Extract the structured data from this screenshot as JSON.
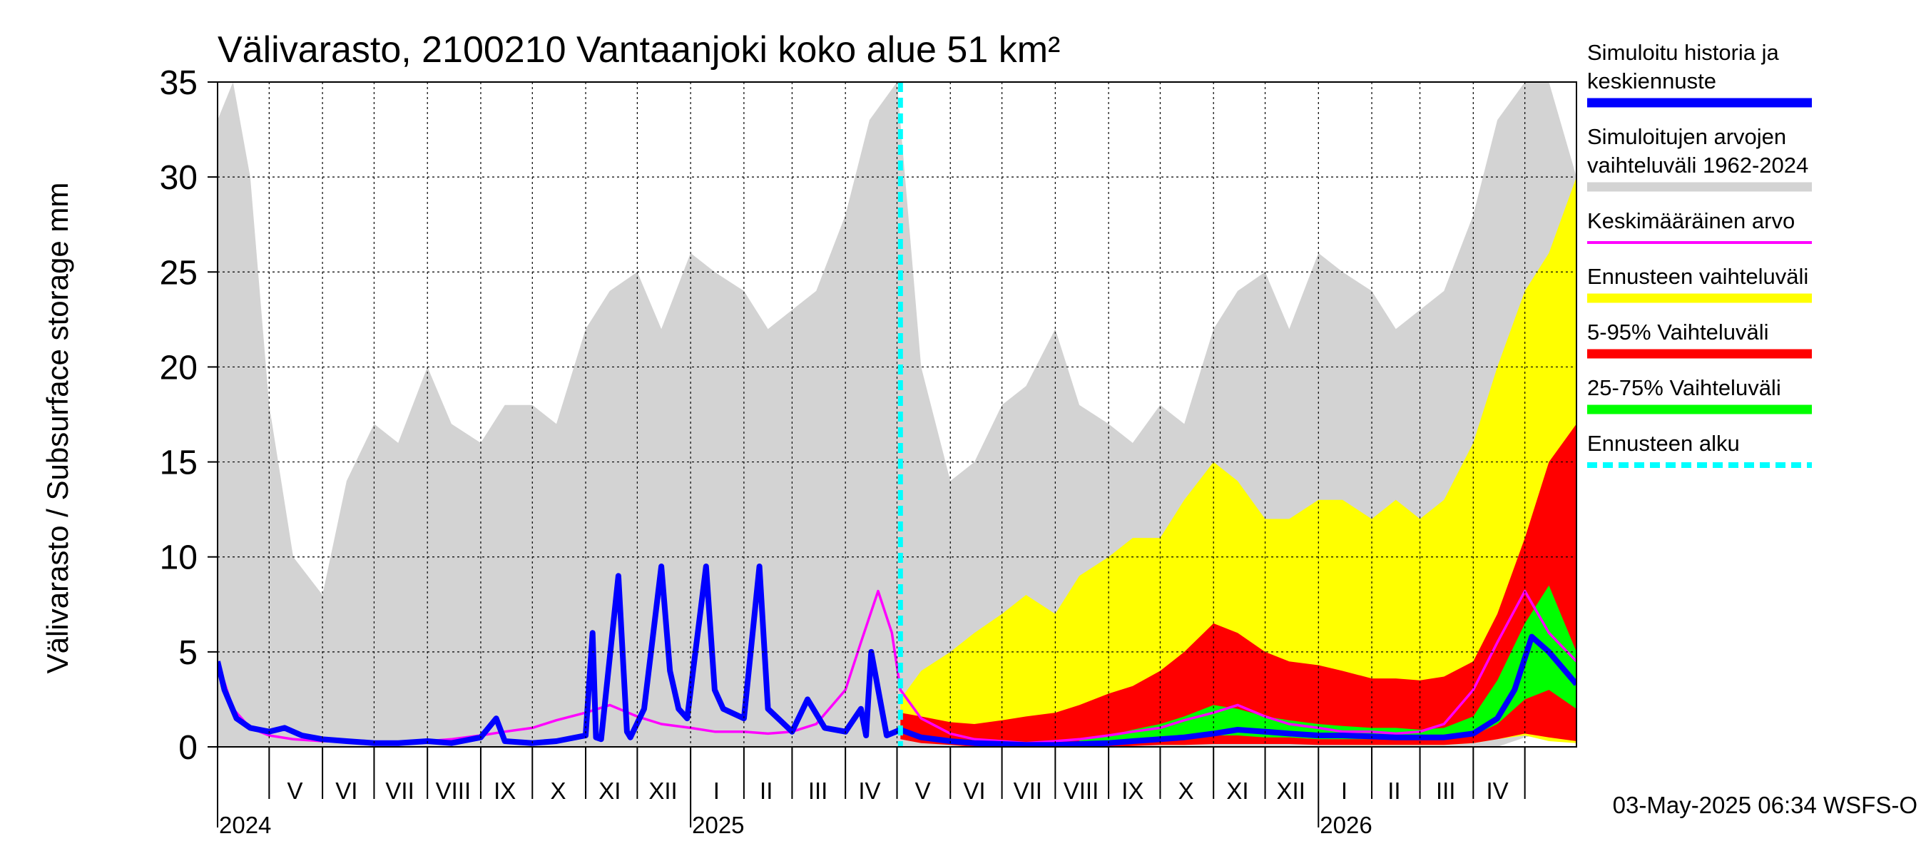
{
  "chart_data": {
    "type": "area",
    "title": "Välivarasto, 2100210 Vantaanjoki koko alue 51 km²",
    "ylabel": "Välivarasto / Subsurface storage  mm",
    "ylim": [
      0,
      35
    ],
    "y_ticks": [
      0,
      5,
      10,
      15,
      20,
      25,
      30,
      35
    ],
    "grid": true,
    "legend_position": "right",
    "x_range": [
      "2024-04-01",
      "2026-05-31"
    ],
    "forecast_start": "2025-05-03",
    "month_labels": [
      {
        "label": "V",
        "date": "2024-05-16"
      },
      {
        "label": "VI",
        "date": "2024-06-15"
      },
      {
        "label": "VII",
        "date": "2024-07-16"
      },
      {
        "label": "VIII",
        "date": "2024-08-16"
      },
      {
        "label": "IX",
        "date": "2024-09-15"
      },
      {
        "label": "X",
        "date": "2024-10-16"
      },
      {
        "label": "XI",
        "date": "2024-11-15"
      },
      {
        "label": "XII",
        "date": "2024-12-16"
      },
      {
        "label": "I",
        "date": "2025-01-16"
      },
      {
        "label": "II",
        "date": "2025-02-14"
      },
      {
        "label": "III",
        "date": "2025-03-16"
      },
      {
        "label": "IV",
        "date": "2025-04-15"
      },
      {
        "label": "V",
        "date": "2025-05-16"
      },
      {
        "label": "VI",
        "date": "2025-06-15"
      },
      {
        "label": "VII",
        "date": "2025-07-16"
      },
      {
        "label": "VIII",
        "date": "2025-08-16"
      },
      {
        "label": "IX",
        "date": "2025-09-15"
      },
      {
        "label": "X",
        "date": "2025-10-16"
      },
      {
        "label": "XI",
        "date": "2025-11-15"
      },
      {
        "label": "XII",
        "date": "2025-12-16"
      },
      {
        "label": "I",
        "date": "2026-01-16"
      },
      {
        "label": "II",
        "date": "2026-02-14"
      },
      {
        "label": "III",
        "date": "2026-03-16"
      },
      {
        "label": "IV",
        "date": "2026-04-15"
      }
    ],
    "year_labels": [
      {
        "label": "2024",
        "date": "2024-05-01"
      },
      {
        "label": "2025",
        "date": "2025-01-01"
      },
      {
        "label": "2026",
        "date": "2026-01-01"
      }
    ],
    "footer": "03-May-2025 06:34 WSFS-O",
    "legend": [
      {
        "label": "Simuloitu historia ja keskiennuste",
        "color": "#0000ff",
        "style": "thick"
      },
      {
        "label": "Simuloitujen arvojen vaihteluväli 1962-2024",
        "color": "#d3d3d3",
        "style": "thick"
      },
      {
        "label": "Keskimääräinen arvo",
        "color": "#ff00ff",
        "style": "thin"
      },
      {
        "label": "Ennusteen vaihteluväli",
        "color": "#ffff00",
        "style": "thick"
      },
      {
        "label": "5-95% Vaihteluväli",
        "color": "#ff0000",
        "style": "thick"
      },
      {
        "label": "25-75% Vaihteluväli",
        "color": "#00ff00",
        "style": "thick"
      },
      {
        "label": "Ennusteen alku",
        "color": "#00ffff",
        "style": "dashed"
      }
    ],
    "series": [
      {
        "name": "Simuloitujen arvojen vaihteluväli 1962-2024",
        "kind": "band",
        "color": "#d3d3d3",
        "x": [
          "2024-04-01",
          "2024-04-10",
          "2024-04-20",
          "2024-05-01",
          "2024-05-15",
          "2024-06-01",
          "2024-06-15",
          "2024-07-01",
          "2024-07-15",
          "2024-08-01",
          "2024-08-15",
          "2024-09-01",
          "2024-09-15",
          "2024-10-01",
          "2024-10-15",
          "2024-11-01",
          "2024-11-15",
          "2024-12-01",
          "2024-12-15",
          "2025-01-01",
          "2025-01-15",
          "2025-02-01",
          "2025-02-15",
          "2025-03-01",
          "2025-03-15",
          "2025-04-01",
          "2025-04-15",
          "2025-05-01",
          "2025-05-15",
          "2025-06-01",
          "2025-06-15",
          "2025-07-01",
          "2025-07-15",
          "2025-08-01",
          "2025-08-15",
          "2025-09-01",
          "2025-09-15",
          "2025-10-01",
          "2025-10-15",
          "2025-11-01",
          "2025-11-15",
          "2025-12-01",
          "2025-12-15",
          "2026-01-01",
          "2026-01-15",
          "2026-02-01",
          "2026-02-15",
          "2026-03-01",
          "2026-03-15",
          "2026-04-01",
          "2026-04-15",
          "2026-05-01",
          "2026-05-15",
          "2026-05-31"
        ],
        "upper": [
          33,
          35,
          30,
          18,
          10,
          8,
          14,
          17,
          16,
          20,
          17,
          16,
          18,
          18,
          17,
          22,
          24,
          25,
          22,
          26,
          25,
          24,
          22,
          23,
          24,
          28,
          33,
          35,
          20,
          14,
          15,
          18,
          19,
          22,
          18,
          17,
          16,
          18,
          17,
          22,
          24,
          25,
          22,
          26,
          25,
          24,
          22,
          23,
          24,
          28,
          33,
          35,
          35,
          30
        ],
        "lower": [
          0,
          0,
          0,
          0,
          0,
          0,
          0,
          0,
          0,
          0,
          0,
          0,
          0,
          0,
          0,
          0,
          0,
          0,
          0,
          0,
          0,
          0,
          0,
          0,
          0,
          0,
          0,
          0,
          0,
          0,
          0,
          0,
          0,
          0,
          0,
          0,
          0,
          0,
          0,
          0,
          0,
          0,
          0,
          0,
          0,
          0,
          0,
          0,
          0,
          0,
          0,
          0.5,
          0.8,
          0.3
        ]
      },
      {
        "name": "Ennusteen vaihteluväli",
        "kind": "band",
        "color": "#ffff00",
        "x": [
          "2025-05-03",
          "2025-05-15",
          "2025-06-01",
          "2025-06-15",
          "2025-07-01",
          "2025-07-15",
          "2025-08-01",
          "2025-08-15",
          "2025-09-01",
          "2025-09-15",
          "2025-10-01",
          "2025-10-15",
          "2025-11-01",
          "2025-11-15",
          "2025-12-01",
          "2025-12-15",
          "2026-01-01",
          "2026-01-15",
          "2026-02-01",
          "2026-02-15",
          "2026-03-01",
          "2026-03-15",
          "2026-04-01",
          "2026-04-15",
          "2026-05-01",
          "2026-05-15",
          "2026-05-31"
        ],
        "upper": [
          2.5,
          4,
          5,
          6,
          7,
          8,
          7,
          9,
          10,
          11,
          11,
          13,
          15,
          14,
          12,
          12,
          13,
          13,
          12,
          13,
          12,
          13,
          16,
          20,
          24,
          26,
          30
        ],
        "lower": [
          0.5,
          0.3,
          0.2,
          0.1,
          0,
          0,
          0,
          0,
          0,
          0.1,
          0.1,
          0.1,
          0.2,
          0.2,
          0.2,
          0.2,
          0.2,
          0.1,
          0.1,
          0.1,
          0.1,
          0.1,
          0.2,
          0.4,
          0.6,
          0.3,
          0.2
        ]
      },
      {
        "name": "5-95% Vaihteluväli",
        "kind": "band",
        "color": "#ff0000",
        "x": [
          "2025-05-03",
          "2025-05-15",
          "2025-06-01",
          "2025-06-15",
          "2025-07-01",
          "2025-07-15",
          "2025-08-01",
          "2025-08-15",
          "2025-09-01",
          "2025-09-15",
          "2025-10-01",
          "2025-10-15",
          "2025-11-01",
          "2025-11-15",
          "2025-12-01",
          "2025-12-15",
          "2026-01-01",
          "2026-01-15",
          "2026-02-01",
          "2026-02-15",
          "2026-03-01",
          "2026-03-15",
          "2026-04-01",
          "2026-04-15",
          "2026-05-01",
          "2026-05-15",
          "2026-05-31"
        ],
        "upper": [
          1.8,
          1.6,
          1.3,
          1.2,
          1.4,
          1.6,
          1.8,
          2.2,
          2.8,
          3.2,
          4,
          5,
          6.5,
          6,
          5,
          4.5,
          4.3,
          4,
          3.6,
          3.6,
          3.5,
          3.7,
          4.5,
          7,
          11,
          15,
          17
        ],
        "lower": [
          0.4,
          0.2,
          0.1,
          0,
          0,
          0,
          0,
          0,
          0,
          0.05,
          0.1,
          0.1,
          0.15,
          0.15,
          0.15,
          0.15,
          0.1,
          0.1,
          0.1,
          0.1,
          0.1,
          0.1,
          0.2,
          0.4,
          0.7,
          0.5,
          0.3
        ]
      },
      {
        "name": "25-75% Vaihteluväli",
        "kind": "band",
        "color": "#00ff00",
        "x": [
          "2025-08-15",
          "2025-09-01",
          "2025-09-15",
          "2025-10-01",
          "2025-10-15",
          "2025-11-01",
          "2025-11-15",
          "2025-12-01",
          "2025-12-15",
          "2026-01-01",
          "2026-01-15",
          "2026-02-01",
          "2026-02-15",
          "2026-03-01",
          "2026-03-15",
          "2026-04-01",
          "2026-04-15",
          "2026-05-01",
          "2026-05-15",
          "2026-05-31"
        ],
        "upper": [
          0.4,
          0.6,
          0.9,
          1.2,
          1.6,
          2.2,
          2,
          1.6,
          1.4,
          1.2,
          1.1,
          1,
          1,
          0.9,
          1,
          1.6,
          3.5,
          6.5,
          8.5,
          5
        ],
        "lower": [
          0.1,
          0.2,
          0.3,
          0.4,
          0.5,
          0.6,
          0.6,
          0.5,
          0.5,
          0.4,
          0.4,
          0.4,
          0.4,
          0.4,
          0.4,
          0.6,
          1.2,
          2.5,
          3,
          2
        ]
      },
      {
        "name": "Keskimääräinen arvo",
        "kind": "line",
        "color": "#ff00ff",
        "x": [
          "2024-04-01",
          "2024-04-10",
          "2024-04-20",
          "2024-05-01",
          "2024-05-15",
          "2024-06-01",
          "2024-06-15",
          "2024-07-01",
          "2024-07-15",
          "2024-08-01",
          "2024-08-15",
          "2024-09-01",
          "2024-09-15",
          "2024-10-01",
          "2024-10-15",
          "2024-11-01",
          "2024-11-15",
          "2024-12-01",
          "2024-12-15",
          "2025-01-01",
          "2025-01-15",
          "2025-02-01",
          "2025-02-15",
          "2025-03-01",
          "2025-03-15",
          "2025-04-01",
          "2025-04-10",
          "2025-04-20",
          "2025-04-28",
          "2025-05-03",
          "2025-05-15",
          "2025-06-01",
          "2025-06-15",
          "2025-07-01",
          "2025-07-15",
          "2025-08-01",
          "2025-08-15",
          "2025-09-01",
          "2025-09-15",
          "2025-10-01",
          "2025-10-15",
          "2025-11-01",
          "2025-11-15",
          "2025-12-01",
          "2025-12-15",
          "2026-01-01",
          "2026-01-15",
          "2026-02-01",
          "2026-02-15",
          "2026-03-01",
          "2026-03-15",
          "2026-04-01",
          "2026-04-15",
          "2026-05-01",
          "2026-05-15",
          "2026-05-31"
        ],
        "values": [
          4.5,
          2,
          1,
          0.6,
          0.4,
          0.3,
          0.3,
          0.2,
          0.2,
          0.3,
          0.4,
          0.6,
          0.8,
          1,
          1.4,
          1.8,
          2.2,
          1.6,
          1.2,
          1,
          0.8,
          0.8,
          0.7,
          0.8,
          1.2,
          3,
          5.5,
          8.2,
          6,
          3,
          1.5,
          0.7,
          0.4,
          0.3,
          0.2,
          0.3,
          0.4,
          0.6,
          0.8,
          1,
          1.4,
          1.8,
          2.2,
          1.6,
          1.2,
          1,
          0.8,
          0.8,
          0.7,
          0.8,
          1.2,
          3,
          5.5,
          8.2,
          6,
          4.5
        ]
      },
      {
        "name": "Simuloitu historia ja keskiennuste",
        "kind": "line",
        "color": "#0000ff",
        "x": [
          "2024-04-01",
          "2024-04-05",
          "2024-04-12",
          "2024-04-20",
          "2024-05-01",
          "2024-05-10",
          "2024-05-20",
          "2024-06-01",
          "2024-06-15",
          "2024-07-01",
          "2024-07-15",
          "2024-08-01",
          "2024-08-15",
          "2024-09-01",
          "2024-09-10",
          "2024-09-15",
          "2024-10-01",
          "2024-10-15",
          "2024-11-01",
          "2024-11-05",
          "2024-11-07",
          "2024-11-10",
          "2024-11-20",
          "2024-11-25",
          "2024-11-27",
          "2024-12-05",
          "2024-12-15",
          "2024-12-20",
          "2024-12-25",
          "2024-12-30",
          "2025-01-10",
          "2025-01-15",
          "2025-01-20",
          "2025-02-01",
          "2025-02-10",
          "2025-02-15",
          "2025-03-01",
          "2025-03-10",
          "2025-03-20",
          "2025-04-01",
          "2025-04-10",
          "2025-04-13",
          "2025-04-16",
          "2025-04-25",
          "2025-05-03",
          "2025-05-15",
          "2025-06-01",
          "2025-06-15",
          "2025-07-01",
          "2025-07-15",
          "2025-08-01",
          "2025-08-15",
          "2025-09-01",
          "2025-09-15",
          "2025-10-01",
          "2025-10-15",
          "2025-11-01",
          "2025-11-15",
          "2025-12-01",
          "2025-12-15",
          "2026-01-01",
          "2026-01-15",
          "2026-02-01",
          "2026-02-15",
          "2026-03-01",
          "2026-03-15",
          "2026-04-01",
          "2026-04-15",
          "2026-04-25",
          "2026-05-05",
          "2026-05-15",
          "2026-05-31"
        ],
        "values": [
          4.5,
          3,
          1.5,
          1,
          0.8,
          1,
          0.6,
          0.4,
          0.3,
          0.2,
          0.2,
          0.3,
          0.2,
          0.5,
          1.5,
          0.3,
          0.2,
          0.3,
          0.6,
          6,
          0.5,
          0.4,
          9,
          0.8,
          0.5,
          2,
          9.5,
          4,
          2,
          1.5,
          9.5,
          3,
          2,
          1.5,
          9.5,
          2,
          0.8,
          2.5,
          1,
          0.8,
          2,
          0.6,
          5,
          0.6,
          0.9,
          0.5,
          0.3,
          0.2,
          0.15,
          0.1,
          0.1,
          0.15,
          0.2,
          0.3,
          0.4,
          0.5,
          0.7,
          0.9,
          0.8,
          0.7,
          0.6,
          0.6,
          0.55,
          0.5,
          0.5,
          0.5,
          0.7,
          1.5,
          3,
          5.8,
          5,
          3.3
        ]
      }
    ]
  }
}
